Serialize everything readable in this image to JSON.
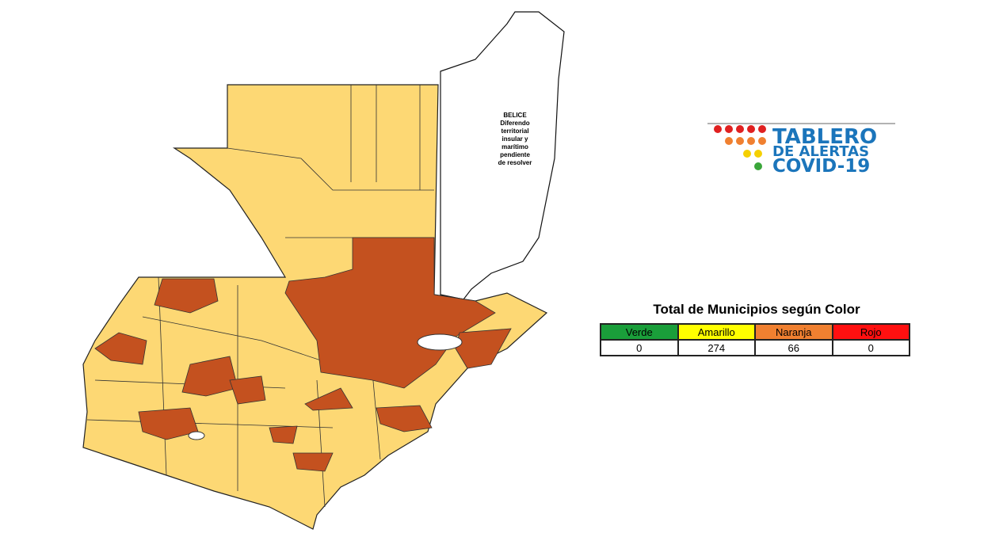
{
  "map": {
    "belize_label": [
      "BELICE",
      "Diferendo",
      "territorial",
      "insular y",
      "marítimo",
      "pendiente",
      "de resolver"
    ]
  },
  "logo": {
    "lines": [
      "TABLERO",
      "DE ALERTAS",
      "COVID-19"
    ]
  },
  "table": {
    "title": "Total de Municipios según Color",
    "headers": [
      "Verde",
      "Amarillo",
      "Naranja",
      "Rojo"
    ],
    "rows": [
      [
        0,
        274,
        66,
        0
      ]
    ]
  }
}
